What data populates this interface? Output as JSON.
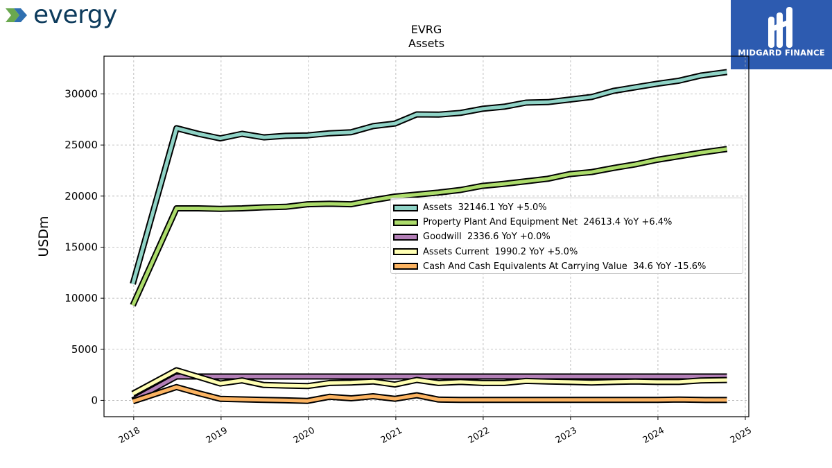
{
  "brand": {
    "name": "evergy"
  },
  "publisher": {
    "name": "MIDGARD FINANCE"
  },
  "chart_data": {
    "type": "line",
    "title": "EVRG",
    "subtitle": "Assets",
    "ylabel": "USDm",
    "xlabel": "",
    "xlim": [
      2017.66,
      2025.04
    ],
    "ylim": [
      -1600,
      33700
    ],
    "x_ticks": [
      2018,
      2019,
      2020,
      2021,
      2022,
      2023,
      2024,
      2025
    ],
    "y_ticks": [
      0,
      5000,
      10000,
      15000,
      20000,
      25000,
      30000
    ],
    "grid": true,
    "legend_position": "center-right",
    "x": [
      2017.99,
      2018.49,
      2018.74,
      2018.99,
      2019.24,
      2019.49,
      2019.74,
      2019.99,
      2020.24,
      2020.49,
      2020.74,
      2020.99,
      2021.24,
      2021.49,
      2021.74,
      2021.99,
      2022.24,
      2022.49,
      2022.74,
      2022.99,
      2023.24,
      2023.49,
      2023.74,
      2023.99,
      2024.24,
      2024.49,
      2024.79
    ],
    "series": [
      {
        "name": "Assets",
        "legend": "Assets  32146.1 YoY +5.0%",
        "color": "#8fd3c6",
        "values": [
          11400,
          26650,
          26100,
          25650,
          26100,
          25750,
          25900,
          25950,
          26150,
          26250,
          26850,
          27100,
          28000,
          27980,
          28150,
          28550,
          28750,
          29150,
          29200,
          29450,
          29700,
          30300,
          30650,
          31000,
          31300,
          31800,
          32146
        ]
      },
      {
        "name": "Property Plant And Equipment Net",
        "legend": "Property Plant And Equipment Net  24613.4 YoY +6.4%",
        "color": "#acdc6b",
        "values": [
          9300,
          18800,
          18800,
          18750,
          18800,
          18900,
          18950,
          19200,
          19250,
          19200,
          19600,
          19950,
          20150,
          20350,
          20600,
          21000,
          21200,
          21450,
          21700,
          22150,
          22350,
          22750,
          23100,
          23550,
          23900,
          24250,
          24613
        ]
      },
      {
        "name": "Goodwill",
        "legend": "Goodwill  2336.6 YoY +0.0%",
        "color": "#b37fb7",
        "values": [
          0,
          2336.6,
          2336.6,
          2336.6,
          2336.6,
          2336.6,
          2336.6,
          2336.6,
          2336.6,
          2336.6,
          2336.6,
          2336.6,
          2336.6,
          2336.6,
          2336.6,
          2336.6,
          2336.6,
          2336.6,
          2336.6,
          2336.6,
          2336.6,
          2336.6,
          2336.6,
          2336.6,
          2336.6,
          2336.6,
          2336.6
        ]
      },
      {
        "name": "Assets Current",
        "legend": "Assets Current  1990.2 YoY +5.0%",
        "color": "#ffffb3",
        "values": [
          650,
          2950,
          2300,
          1650,
          1950,
          1500,
          1450,
          1400,
          1700,
          1750,
          1850,
          1550,
          2000,
          1700,
          1800,
          1700,
          1700,
          1900,
          1850,
          1800,
          1750,
          1800,
          1850,
          1800,
          1800,
          1950,
          1990
        ]
      },
      {
        "name": "Cash And Cash Equivalents At Carrying Value",
        "legend": "Cash And Cash Equivalents At Carrying Value  34.6 YoY -15.6%",
        "color": "#fcb462",
        "values": [
          -100,
          1300,
          700,
          150,
          100,
          50,
          0,
          -50,
          350,
          200,
          400,
          150,
          500,
          80,
          40,
          40,
          40,
          40,
          40,
          40,
          40,
          40,
          50,
          40,
          80,
          45,
          35
        ]
      }
    ]
  }
}
